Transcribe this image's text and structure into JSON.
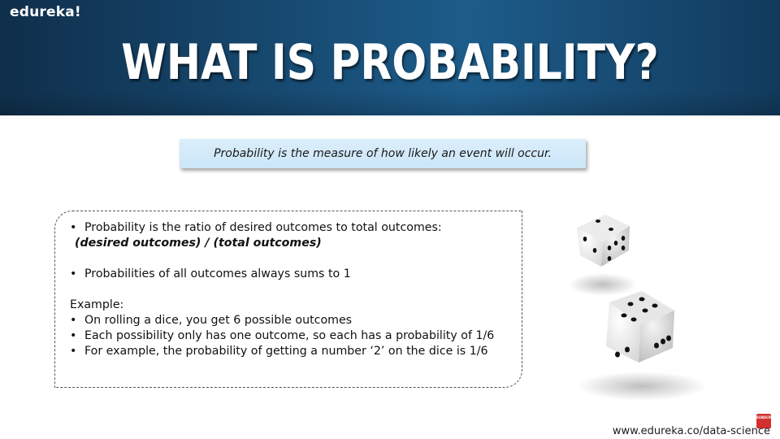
{
  "brand": "edureka!",
  "title": "WHAT IS PROBABILITY?",
  "definition": "Probability is the measure of how likely an event will occur.",
  "panel": {
    "point1": "Probability is the ratio of desired outcomes to total outcomes:",
    "formula": "(desired outcomes) / (total outcomes)",
    "point2": "Probabilities of all outcomes always sums to 1",
    "example_label": "Example:",
    "examples": [
      "On rolling a dice, you get 6 possible outcomes",
      "Each possibility only has one outcome, so each has a probability of 1/6",
      "For example, the probability of getting a number ‘2’ on the dice is 1/6"
    ]
  },
  "bullet": "•",
  "subscribe_badge": "SUBSCRIBE",
  "footer_url": "www.edureka.co/data-science",
  "colors": {
    "header": "#19507a",
    "definition_box": "#d3eafa",
    "badge": "#d32f2f"
  },
  "icons": [
    "dice-icon",
    "dice-icon"
  ]
}
